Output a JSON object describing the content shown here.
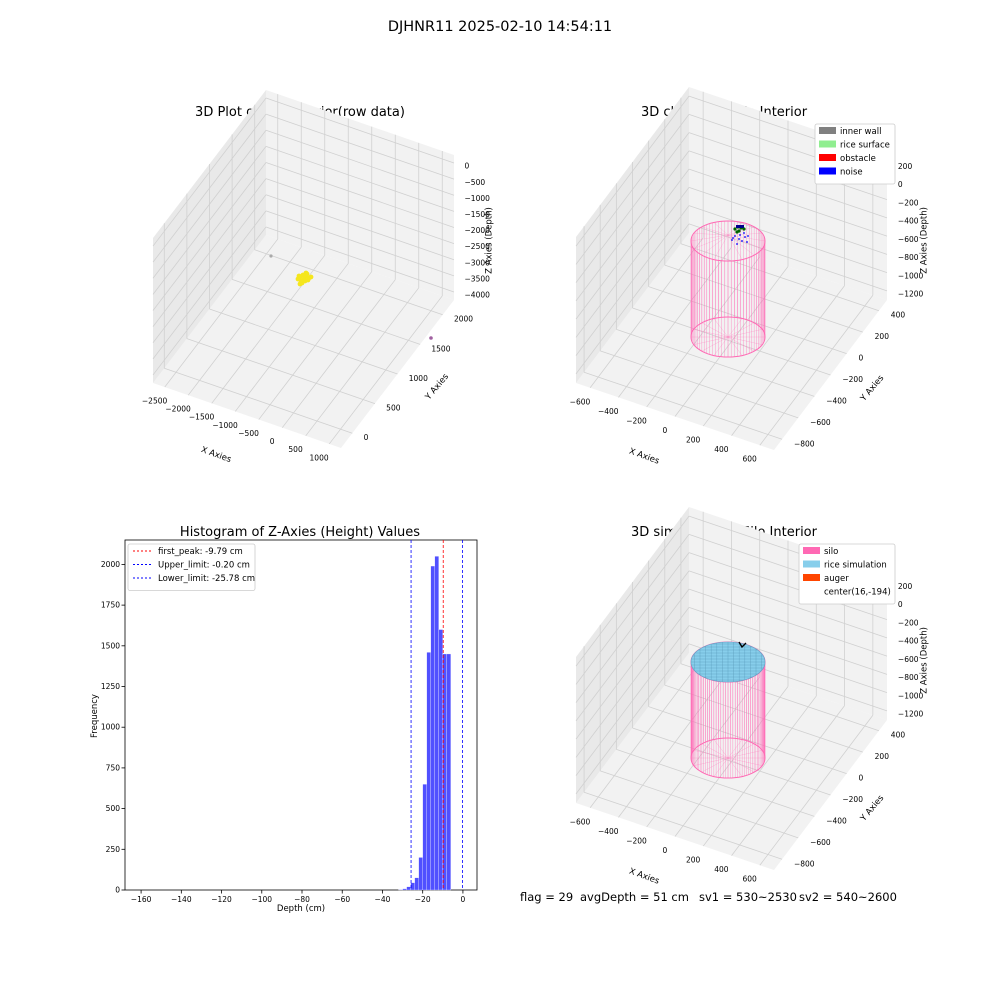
{
  "figure": {
    "suptitle": "DJHNR11 2025-02-10 14:54:11",
    "status_line": {
      "flag": "flag = 29",
      "avg_depth": "avgDepth = 51 cm",
      "sv1": "sv1 = 530~2530",
      "sv2": "sv2 = 540~2600"
    }
  },
  "colors": {
    "pane": "#f2f2f2",
    "pane_side": "#e9e9e9",
    "grid": "#d0d0d0",
    "silo": "#ff69b4",
    "rice_surface": "#90ee90",
    "rice_simulation": "#87ceeb",
    "auger": "#ff4500",
    "inner_wall": "#808080",
    "obstacle": "#ff0000",
    "noise": "#0000ff",
    "hist_bar": "#5050ff",
    "raw_points": "#f5e61e"
  },
  "chart_data": [
    {
      "type": "scatter3d",
      "title": "3D Plot of Silo Interior(row data)",
      "xlabel": "X Axies",
      "ylabel": "Y Axies",
      "zlabel": "Z Axies (Depth)",
      "x_ticks": [
        "−2500",
        "−2000",
        "−1500",
        "−1000",
        "−500",
        "0",
        "500",
        "1000"
      ],
      "y_ticks": [
        "0",
        "500",
        "1000",
        "1500",
        "2000"
      ],
      "z_ticks": [
        "0",
        "−500",
        "−1000",
        "−1500",
        "−2000",
        "−2500",
        "−3000",
        "−3500",
        "−4000"
      ]
    },
    {
      "type": "scatter3d",
      "title": "3D classify of Silo Interior",
      "xlabel": "X Axies",
      "ylabel": "Y Axies",
      "zlabel": "Z Axies (Depth)",
      "x_ticks": [
        "−600",
        "−400",
        "−200",
        "0",
        "200",
        "400",
        "600"
      ],
      "y_ticks": [
        "−800",
        "−600",
        "−400",
        "−200",
        "0",
        "200",
        "400"
      ],
      "z_ticks": [
        "200",
        "0",
        "−200",
        "−400",
        "−600",
        "−800",
        "−1000",
        "−1200"
      ],
      "legend": [
        {
          "label": "inner wall",
          "color": "#808080"
        },
        {
          "label": "rice surface",
          "color": "#90ee90"
        },
        {
          "label": "obstacle",
          "color": "#ff0000"
        },
        {
          "label": "noise",
          "color": "#0000ff"
        }
      ]
    },
    {
      "type": "bar",
      "title": "Histogram of Z-Axies (Height) Values",
      "xlabel": "Depth (cm)",
      "ylabel": "Frequency",
      "xlim": [
        -168,
        7
      ],
      "ylim": [
        0,
        2150
      ],
      "x_ticks": [
        -160,
        -140,
        -120,
        -100,
        -80,
        -60,
        -40,
        -20,
        0
      ],
      "y_ticks": [
        0,
        250,
        500,
        750,
        1000,
        1250,
        1500,
        1750,
        2000
      ],
      "bin_edges": [
        -32,
        -30,
        -28,
        -26,
        -24,
        -22,
        -20,
        -18,
        -16,
        -14,
        -12,
        -10,
        -8,
        -6,
        -4,
        -2,
        0
      ],
      "values": [
        3,
        8,
        20,
        45,
        75,
        200,
        650,
        1460,
        1990,
        2050,
        1600,
        1450,
        1450,
        0,
        0,
        0
      ],
      "lines": [
        {
          "label": "first_peak: -9.79 cm",
          "x": -9.79,
          "color": "#ff0000"
        },
        {
          "label": "Upper_limit: -0.20 cm",
          "x": -0.2,
          "color": "#0000ff"
        },
        {
          "label": "Lower_limit: -25.78 cm",
          "x": -25.78,
          "color": "#0000ff"
        }
      ]
    },
    {
      "type": "surface3d",
      "title": "3D simulation of Silo Interior",
      "xlabel": "X Axies",
      "ylabel": "Y Axies",
      "zlabel": "Z Axies (Depth)",
      "x_ticks": [
        "−600",
        "−400",
        "−200",
        "0",
        "200",
        "400",
        "600"
      ],
      "y_ticks": [
        "−800",
        "−600",
        "−400",
        "−200",
        "0",
        "200",
        "400"
      ],
      "z_ticks": [
        "200",
        "0",
        "−200",
        "−400",
        "−600",
        "−800",
        "−1000",
        "−1200"
      ],
      "legend": [
        {
          "label": "silo",
          "color": "#ff69b4"
        },
        {
          "label": "rice simulation",
          "color": "#87ceeb"
        },
        {
          "label": "auger",
          "color": "#ff4500"
        },
        {
          "label": "center(16,-194)",
          "color": ""
        }
      ]
    }
  ]
}
